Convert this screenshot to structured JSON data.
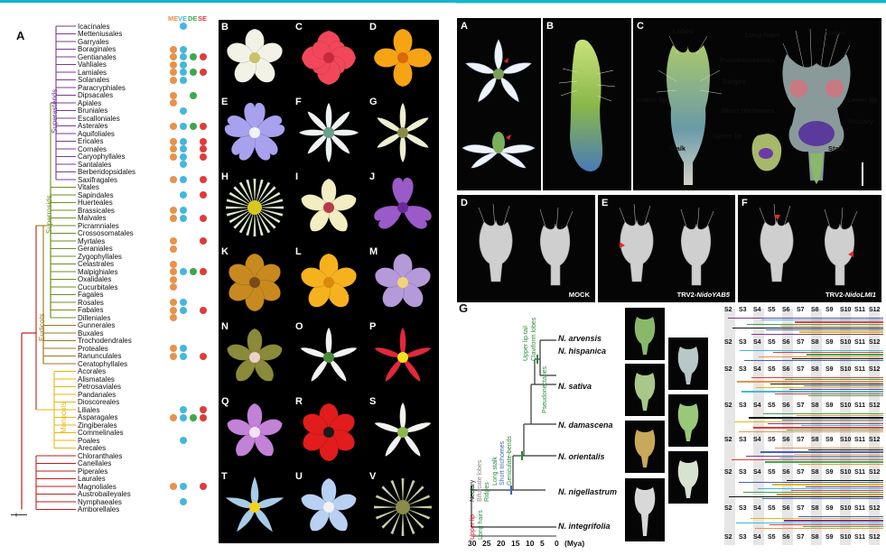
{
  "colors": {
    "superasterids": "#7b3a96",
    "superrosids": "#6d8f1e",
    "eudicots": "#9a7a1c",
    "monocots": "#e8b70d",
    "basal": "#c21c1c",
    "ME": "#e8924a",
    "VE": "#42b8dc",
    "DE": "#3ca84a",
    "SE": "#e23a3a"
  },
  "panelA": {
    "letter": "A",
    "columns": [
      "ME",
      "VE",
      "DE",
      "SE"
    ],
    "clades": [
      "Superasterids",
      "Superrosids",
      "Eudicots",
      "Monocots"
    ],
    "taxa": [
      {
        "name": "Icacinales",
        "dots": [
          "VE"
        ]
      },
      {
        "name": "Metteniusales",
        "dots": []
      },
      {
        "name": "Garryales",
        "dots": []
      },
      {
        "name": "Boraginales",
        "dots": [
          "ME",
          "VE"
        ]
      },
      {
        "name": "Gentianales",
        "dots": [
          "ME",
          "VE",
          "DE",
          "SE"
        ]
      },
      {
        "name": "Vahliales",
        "dots": [
          "ME",
          "VE"
        ]
      },
      {
        "name": "Lamiales",
        "dots": [
          "ME",
          "VE",
          "DE",
          "SE"
        ]
      },
      {
        "name": "Solanales",
        "dots": [
          "ME",
          "VE"
        ]
      },
      {
        "name": "Paracryphiales",
        "dots": []
      },
      {
        "name": "Dipsacales",
        "dots": [
          "ME",
          "DE"
        ]
      },
      {
        "name": "Apiales",
        "dots": [
          "ME"
        ]
      },
      {
        "name": "Bruniales",
        "dots": [
          "VE"
        ]
      },
      {
        "name": "Escalloniales",
        "dots": []
      },
      {
        "name": "Asterales",
        "dots": [
          "ME",
          "VE",
          "DE",
          "SE"
        ]
      },
      {
        "name": "Aquifoliales",
        "dots": []
      },
      {
        "name": "Ericales",
        "dots": [
          "ME",
          "VE",
          "SE"
        ]
      },
      {
        "name": "Cornales",
        "dots": [
          "ME",
          "VE",
          "SE"
        ]
      },
      {
        "name": "Caryophyllales",
        "dots": [
          "ME",
          "VE",
          "SE"
        ]
      },
      {
        "name": "Santalales",
        "dots": [
          "VE"
        ]
      },
      {
        "name": "Berberidopsidales",
        "dots": []
      },
      {
        "name": "Saxifragales",
        "dots": [
          "ME",
          "VE",
          "SE"
        ]
      },
      {
        "name": "Vitales",
        "dots": []
      },
      {
        "name": "Sapindales",
        "dots": [
          "VE",
          "SE"
        ]
      },
      {
        "name": "Huerteales",
        "dots": []
      },
      {
        "name": "Brassicales",
        "dots": [
          "ME",
          "VE"
        ]
      },
      {
        "name": "Malvales",
        "dots": [
          "ME",
          "VE",
          "SE"
        ]
      },
      {
        "name": "Picramniales",
        "dots": []
      },
      {
        "name": "Crossosomatales",
        "dots": []
      },
      {
        "name": "Myrtales",
        "dots": [
          "ME",
          "SE"
        ]
      },
      {
        "name": "Geraniales",
        "dots": [
          "ME"
        ]
      },
      {
        "name": "Zygophyllales",
        "dots": []
      },
      {
        "name": "Celastrales",
        "dots": [
          "ME"
        ]
      },
      {
        "name": "Malpighiales",
        "dots": [
          "ME",
          "VE",
          "DE",
          "SE"
        ]
      },
      {
        "name": "Oxalidales",
        "dots": [
          "ME"
        ]
      },
      {
        "name": "Cucurbitales",
        "dots": [
          "ME"
        ]
      },
      {
        "name": "Fagales",
        "dots": []
      },
      {
        "name": "Rosales",
        "dots": [
          "ME",
          "VE"
        ]
      },
      {
        "name": "Fabales",
        "dots": [
          "ME",
          "VE",
          "SE"
        ]
      },
      {
        "name": "Dilleniales",
        "dots": [
          "ME"
        ]
      },
      {
        "name": "Gunnerales",
        "dots": []
      },
      {
        "name": "Buxales",
        "dots": []
      },
      {
        "name": "Trochodendrales",
        "dots": []
      },
      {
        "name": "Proteales",
        "dots": [
          "ME",
          "VE"
        ]
      },
      {
        "name": "Ranunculales",
        "dots": [
          "ME",
          "VE",
          "SE"
        ]
      },
      {
        "name": "Ceratophyllales",
        "dots": []
      },
      {
        "name": "Acorales",
        "dots": []
      },
      {
        "name": "Alismatales",
        "dots": []
      },
      {
        "name": "Petrosaviales",
        "dots": []
      },
      {
        "name": "Pandanales",
        "dots": []
      },
      {
        "name": "Dioscoreales",
        "dots": []
      },
      {
        "name": "Liliales",
        "dots": [
          "VE",
          "SE"
        ]
      },
      {
        "name": "Asparagales",
        "dots": [
          "ME",
          "VE",
          "DE",
          "SE"
        ]
      },
      {
        "name": "Zingiberales",
        "dots": []
      },
      {
        "name": "Commelinales",
        "dots": []
      },
      {
        "name": "Poales",
        "dots": [
          "VE"
        ]
      },
      {
        "name": "Arecales",
        "dots": []
      },
      {
        "name": "Chloranthales",
        "dots": []
      },
      {
        "name": "Canellales",
        "dots": []
      },
      {
        "name": "Piperales",
        "dots": []
      },
      {
        "name": "Laurales",
        "dots": []
      },
      {
        "name": "Magnoliales",
        "dots": [
          "ME",
          "VE",
          "SE"
        ]
      },
      {
        "name": "Austrobaileyales",
        "dots": []
      },
      {
        "name": "Nymphaeales",
        "dots": [
          "VE"
        ]
      },
      {
        "name": "Amborellales",
        "dots": []
      }
    ]
  },
  "flowers": [
    {
      "letter": "B",
      "bg": "#000",
      "petal": "#f2f2e6",
      "center": "#c8c36a",
      "n": 5,
      "shape": "round"
    },
    {
      "letter": "C",
      "bg": "#000",
      "petal": "#f2475a",
      "center": "#c8283a",
      "n": 8,
      "shape": "rose"
    },
    {
      "letter": "D",
      "bg": "#000",
      "petal": "#f6a413",
      "center": "#d86a0a",
      "n": 4,
      "shape": "round"
    },
    {
      "letter": "E",
      "bg": "#000",
      "petal": "#a8a2ee",
      "center": "#f2f2f2",
      "n": 5,
      "shape": "heart"
    },
    {
      "letter": "F",
      "bg": "#000",
      "petal": "#eef2f2",
      "center": "#6aa08a",
      "n": 8,
      "shape": "narrow"
    },
    {
      "letter": "G",
      "bg": "#000",
      "petal": "#eeeed2",
      "center": "#8a8a4a",
      "n": 6,
      "shape": "narrow"
    },
    {
      "letter": "H",
      "bg": "#000",
      "petal": "#e2f0c8",
      "center": "#d8c81e",
      "n": 24,
      "shape": "fringe"
    },
    {
      "letter": "I",
      "bg": "#000",
      "petal": "#f2eec2",
      "center": "#b8384a",
      "n": 5,
      "shape": "orchid"
    },
    {
      "letter": "J",
      "bg": "#000",
      "petal": "#9a5ac8",
      "center": "#6a2a9a",
      "n": 3,
      "shape": "heart"
    },
    {
      "letter": "K",
      "bg": "#000",
      "petal": "#c88a1e",
      "center": "#7a4a1a",
      "n": 6,
      "shape": "round"
    },
    {
      "letter": "L",
      "bg": "#000",
      "petal": "#f6b21e",
      "center": "#d88a0a",
      "n": 5,
      "shape": "round"
    },
    {
      "letter": "M",
      "bg": "#000",
      "petal": "#b49ad8",
      "center": "#f2d27a",
      "n": 5,
      "shape": "round"
    },
    {
      "letter": "N",
      "bg": "#000",
      "petal": "#8a8a3a",
      "center": "#e8d2c8",
      "n": 5,
      "shape": "orchid"
    },
    {
      "letter": "O",
      "bg": "#000",
      "petal": "#f2f2f2",
      "center": "#4a8a3a",
      "n": 5,
      "shape": "narrow"
    },
    {
      "letter": "P",
      "bg": "#000",
      "petal": "#e2283a",
      "center": "#f2e21e",
      "n": 5,
      "shape": "narrow"
    },
    {
      "letter": "Q",
      "bg": "#000",
      "petal": "#c282d8",
      "center": "#f2e2f2",
      "n": 5,
      "shape": "orchid"
    },
    {
      "letter": "R",
      "bg": "#000",
      "petal": "#e21c1c",
      "center": "#1a1a1a",
      "n": 6,
      "shape": "round"
    },
    {
      "letter": "S",
      "bg": "#000",
      "petal": "#f2f2ee",
      "center": "#8ab84a",
      "n": 5,
      "shape": "narrow"
    },
    {
      "letter": "T",
      "bg": "#000",
      "petal": "#a8cce8",
      "center": "#f2d21e",
      "n": 5,
      "shape": "star"
    },
    {
      "letter": "U",
      "bg": "#000",
      "petal": "#b8d0f2",
      "center": "#f2f2f2",
      "n": 5,
      "shape": "orchid"
    },
    {
      "letter": "V",
      "bg": "#000",
      "petal": "#c8d2a2",
      "center": "#8a8a4a",
      "n": 16,
      "shape": "fringe"
    }
  ],
  "right": {
    "labels": {
      "A": "A",
      "B": "B",
      "C": "C",
      "D": "D",
      "E": "E",
      "F": "F",
      "G": "G"
    },
    "annC": [
      {
        "text": "Lobes",
        "color": "#f2e26a"
      },
      {
        "text": "Lobes",
        "color": "#f2e26a"
      },
      {
        "text": "Long hairs",
        "color": "#f26a3a"
      },
      {
        "text": "Pseudonectaries",
        "color": "#42b8f2"
      },
      {
        "text": "Ridges",
        "color": "#42b8f2"
      },
      {
        "text": "Lower lip",
        "color": "#ffffff"
      },
      {
        "text": "Lower lip",
        "color": "#ffffff"
      },
      {
        "text": "Short trichomes",
        "color": "#f26a3a"
      },
      {
        "text": "Nectary",
        "color": "#f2e26a"
      },
      {
        "text": "Upper lip",
        "color": "#42b8f2"
      },
      {
        "text": "Stalk",
        "color": "#ffffff"
      },
      {
        "text": "Stalk",
        "color": "#ffffff"
      }
    ],
    "treatD": "MOCK",
    "treatE_prefix": "TRV2-",
    "treatE_gene": "NidoYAB5",
    "treatF_prefix": "TRV2-",
    "treatF_gene": "NidoLMI1"
  },
  "panelG": {
    "species": [
      "N. arvensis",
      "N. hispanica",
      "N. sativa",
      "N. damascena",
      "N. orientalis",
      "N. nigellastrum",
      "N. integrifolia"
    ],
    "traits_upper": [
      {
        "text": "Upper lip tail",
        "color": "#2a8a3a"
      },
      {
        "text": "Claviform lobes",
        "color": "#2a8a3a"
      },
      {
        "text": "Pseudonectaries",
        "color": "#2a8a3a"
      },
      {
        "text": "Long stalk",
        "color": "#2a8a3a"
      },
      {
        "text": "Short trichomes",
        "color": "#4262b8"
      },
      {
        "text": "Geniculate-bends",
        "color": "#2a8a3a"
      },
      {
        "text": "Nectary",
        "color": "#111111"
      },
      {
        "text": "Bifurcate lobes",
        "color": "#888888"
      },
      {
        "text": "Ridges",
        "color": "#2a8a3a"
      },
      {
        "text": "Upper lip",
        "color": "#c21c1c"
      },
      {
        "text": "Long hairs",
        "color": "#2a8a3a"
      }
    ],
    "axis": {
      "ticks": [
        "30",
        "25",
        "20",
        "15",
        "10",
        "5",
        "0"
      ],
      "unit": "(Mya)"
    },
    "stages": [
      "S2",
      "S3",
      "S4",
      "S5",
      "S6",
      "S7",
      "S8",
      "S9",
      "S10",
      "S11",
      "S12"
    ]
  }
}
